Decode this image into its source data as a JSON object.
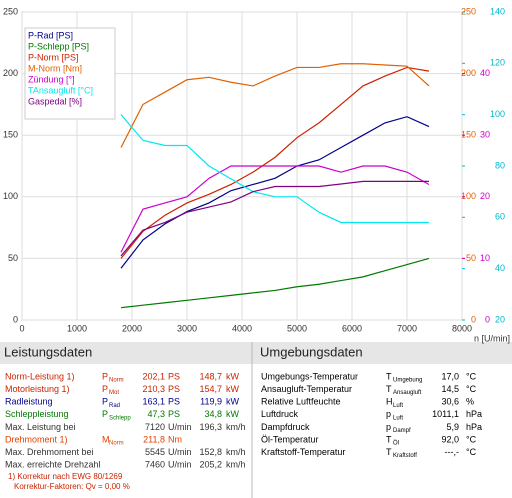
{
  "chart_data": {
    "type": "line",
    "xlabel": "n [U/min]",
    "x": [
      1800,
      2200,
      2600,
      3000,
      3400,
      3800,
      4200,
      4600,
      5000,
      5400,
      5800,
      6200,
      6600,
      7000,
      7400
    ],
    "xlim": [
      0,
      8000
    ],
    "xticks": [
      0,
      1000,
      2000,
      3000,
      4000,
      5000,
      6000,
      7000,
      8000
    ],
    "ylim": [
      0,
      250
    ],
    "yticks": [
      0,
      50,
      100,
      150,
      200,
      250
    ],
    "y2lim": [
      0,
      250
    ],
    "y2ticks": [
      0,
      50,
      100,
      150,
      200,
      250
    ],
    "y2color": "#e06000",
    "y3lim": [
      0,
      50
    ],
    "y3ticks": [
      0,
      10,
      20,
      30,
      40
    ],
    "y3color": "#cc00cc",
    "y4lim": [
      20,
      140
    ],
    "y4ticks": [
      20,
      40,
      60,
      80,
      100,
      120,
      140
    ],
    "y4color": "#00b8c8",
    "grid": true,
    "legend": "upper left",
    "series": [
      {
        "name": "P-Rad [PS]",
        "color": "#00008b",
        "axis": "y",
        "values": [
          42,
          65,
          78,
          88,
          95,
          105,
          110,
          115,
          125,
          130,
          140,
          150,
          160,
          165,
          157
        ]
      },
      {
        "name": "P-Schlepp [PS]",
        "color": "#007a00",
        "axis": "y",
        "values": [
          10,
          12,
          14,
          16,
          18,
          20,
          22,
          24,
          27,
          29,
          32,
          35,
          40,
          45,
          50
        ]
      },
      {
        "name": "P-Norm [PS]",
        "color": "#cc2200",
        "axis": "y",
        "values": [
          50,
          72,
          85,
          95,
          102,
          110,
          120,
          132,
          148,
          160,
          175,
          190,
          198,
          205,
          202
        ]
      },
      {
        "name": "M-Norm [Nm]",
        "color": "#e06000",
        "axis": "y2",
        "values": [
          140,
          175,
          185,
          195,
          197,
          193,
          190,
          198,
          205,
          205,
          208,
          208,
          207,
          206,
          190
        ]
      },
      {
        "name": "Zündung [°]",
        "color": "#cc00cc",
        "axis": "y3",
        "values": [
          11,
          18,
          19,
          20,
          23,
          25,
          25,
          25,
          25,
          25,
          24,
          25,
          25,
          24,
          22
        ]
      },
      {
        "name": "TAnsaugluft [°C]",
        "color": "#00e8f0",
        "axis": "y4",
        "values": [
          100,
          90,
          88,
          88,
          80,
          75,
          70,
          68,
          68,
          62,
          58,
          58,
          58,
          58,
          58
        ]
      },
      {
        "name": "Gaspedal [%]",
        "color": "#800080",
        "axis": "y4",
        "values": [
          45,
          55,
          58,
          62,
          64,
          66,
          70,
          72,
          72,
          72,
          73,
          74,
          74,
          74,
          74
        ]
      }
    ]
  },
  "leistungsdaten": {
    "title": "Leistungsdaten",
    "rows": [
      {
        "color": "#cc2200",
        "label": "Norm-Leistung 1)",
        "symbol": "P",
        "sub": "Norm",
        "cells": [
          "202,1",
          "PS",
          "148,7",
          "kW"
        ]
      },
      {
        "color": "#cc2200",
        "label": "Motorleistung 1)",
        "symbol": "P",
        "sub": "Mot",
        "cells": [
          "210,3",
          "PS",
          "154,7",
          "kW"
        ]
      },
      {
        "color": "#00008b",
        "label": "Radleistung",
        "symbol": "P",
        "sub": "Rad",
        "cells": [
          "163,1",
          "PS",
          "119,9",
          "kW"
        ]
      },
      {
        "color": "#007a00",
        "label": "Schleppleistung",
        "symbol": "P",
        "sub": "Schlepp",
        "cells": [
          "47,3",
          "PS",
          "34,8",
          "kW"
        ]
      },
      {
        "color": "#333333",
        "label": "Max. Leistung bei",
        "cells": [
          "7120",
          "U/min",
          "196,3",
          "km/h"
        ]
      },
      {
        "color": "#e04000",
        "label": "Drehmoment 1)",
        "symbol": "M",
        "sub": "Norm",
        "cells": [
          "211,8",
          "Nm"
        ]
      },
      {
        "color": "#333333",
        "label": "Max. Drehmoment bei",
        "cells": [
          "5545",
          "U/min",
          "152,8",
          "km/h"
        ]
      },
      {
        "color": "#333333",
        "label": "Max. erreichte Drehzahl",
        "cells": [
          "7460",
          "U/min",
          "205,2",
          "km/h"
        ]
      }
    ],
    "footnotes": [
      "1) Korrektur nach EWG 80/1269",
      "Korrektur-Faktoren: Qv = 0,00 %"
    ]
  },
  "umgebungsdaten": {
    "title": "Umgebungsdaten",
    "rows": [
      {
        "color": "#000000",
        "label": "Umgebungs-Temperatur",
        "symbol": "T",
        "sub": "Umgebung",
        "cells": [
          "17,0",
          "°C"
        ]
      },
      {
        "color": "#000000",
        "label": "Ansaugluft-Temperatur",
        "symbol": "T",
        "sub": "Ansaugluft",
        "cells": [
          "14,5",
          "°C"
        ]
      },
      {
        "color": "#000000",
        "label": "Relative Luftfeuchte",
        "symbol": "H",
        "sub": "Luft",
        "cells": [
          "30,6",
          "%"
        ]
      },
      {
        "color": "#000000",
        "label": "Luftdruck",
        "symbol": "p",
        "sub": "Luft",
        "cells": [
          "1011,1",
          "hPa"
        ]
      },
      {
        "color": "#000000",
        "label": "Dampfdruck",
        "symbol": "p",
        "sub": "Dampf",
        "cells": [
          "5,9",
          "hPa"
        ]
      },
      {
        "color": "#000000",
        "label": "Öl-Temperatur",
        "symbol": "T",
        "sub": "Öl",
        "cells": [
          "92,0",
          "°C"
        ]
      },
      {
        "color": "#000000",
        "label": "Kraftstoff-Temperatur",
        "symbol": "T",
        "sub": "Kraftstoff",
        "cells": [
          "---,-",
          "°C"
        ]
      }
    ]
  }
}
